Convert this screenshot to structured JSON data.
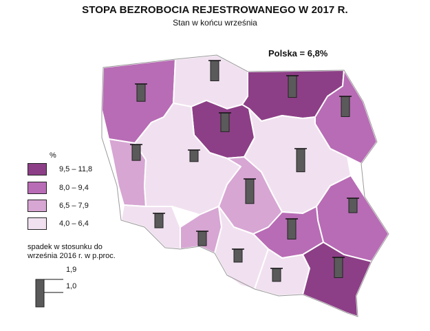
{
  "title": "STOPA BEZROBOCIA REJESTROWANEGO W 2017 R.",
  "subtitle": "Stan w końcu września",
  "poland_total": "Polska = 6,8%",
  "legend": {
    "unit": "%",
    "classes": [
      {
        "label": "9,5  –  11,8",
        "color": "#8c3f86"
      },
      {
        "label": "8,0  –    9,4",
        "color": "#b86cb5"
      },
      {
        "label": "6,5  –    7,9",
        "color": "#d7a6d3"
      },
      {
        "label": "4,0  –    6,4",
        "color": "#f1e1f0"
      }
    ],
    "decline_caption": [
      "spadek w stosunku do",
      "września 2016 r. w p.proc."
    ],
    "scale_labels": [
      "1,9",
      "1,0"
    ],
    "scale_values": [
      1.9,
      1.0
    ],
    "bar_color": "#5a5a5a"
  },
  "chart_data": {
    "type": "map",
    "regions": [
      {
        "class": 2,
        "decline": 1.2
      },
      {
        "class": 4,
        "decline": 1.4
      },
      {
        "class": 1,
        "decline": 1.5
      },
      {
        "class": 2,
        "decline": 1.4
      },
      {
        "class": 1,
        "decline": 1.3
      },
      {
        "class": 3,
        "decline": 1.1
      },
      {
        "class": 4,
        "decline": 0.8
      },
      {
        "class": 4,
        "decline": 1.6
      },
      {
        "class": 3,
        "decline": 1.7
      },
      {
        "class": 2,
        "decline": 1.0
      },
      {
        "class": 4,
        "decline": 1.0
      },
      {
        "class": 3,
        "decline": 1.0
      },
      {
        "class": 2,
        "decline": 1.4
      },
      {
        "class": 4,
        "decline": 0.9
      },
      {
        "class": 4,
        "decline": 0.9
      },
      {
        "class": 1,
        "decline": 1.4
      }
    ]
  }
}
